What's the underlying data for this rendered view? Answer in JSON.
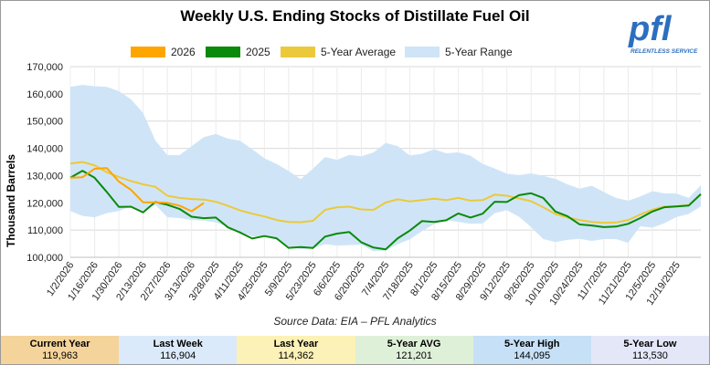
{
  "logo": {
    "text": "pfl",
    "tagline": "RELENTLESS SERVICE"
  },
  "chart_data": {
    "type": "line",
    "title": "Weekly U.S. Ending Stocks of Distillate Fuel Oil",
    "ylabel": "Thousand Barrels",
    "ylim": [
      100000,
      170000
    ],
    "yticks": [
      "100,000",
      "110,000",
      "120,000",
      "130,000",
      "140,000",
      "150,000",
      "160,000",
      "170,000"
    ],
    "xticks": [
      "1/2/2026",
      "1/16/2026",
      "1/30/2026",
      "2/13/2026",
      "2/27/2026",
      "3/13/2026",
      "3/28/2025",
      "4/11/2025",
      "4/25/2025",
      "5/9/2025",
      "5/23/2025",
      "6/6/2025",
      "6/20/2025",
      "7/4/2025",
      "7/18/2025",
      "8/1/2025",
      "8/15/2025",
      "8/29/2025",
      "9/12/2025",
      "9/26/2025",
      "10/10/2025",
      "10/24/2025",
      "11/7/2025",
      "11/21/2025",
      "12/5/2025",
      "12/19/2025"
    ],
    "weeks": 53,
    "legend": [
      {
        "name": "2026",
        "color": "#ffa500"
      },
      {
        "name": "2025",
        "color": "#0a8a0a"
      },
      {
        "name": "5-Year Average",
        "color": "#ecc93a"
      },
      {
        "name": "5-Year Range",
        "color": "#cfe5f7"
      }
    ],
    "series": [
      {
        "name": "2026",
        "color": "#ffa500",
        "values": [
          129200,
          129400,
          132500,
          132800,
          127800,
          124800,
          120200,
          120200,
          120000,
          119000,
          116904,
          119963
        ]
      },
      {
        "name": "2025",
        "color": "#0a8a0a",
        "values": [
          129200,
          131800,
          129200,
          124000,
          118500,
          118600,
          116500,
          120300,
          119300,
          117800,
          114900,
          114362,
          114600,
          111000,
          109100,
          106900,
          107800,
          107000,
          103500,
          103800,
          103400,
          107600,
          108700,
          109300,
          105500,
          103600,
          102900,
          107000,
          109800,
          113300,
          113000,
          113600,
          116100,
          114600,
          116000,
          120400,
          120300,
          122800,
          123500,
          121800,
          116800,
          115100,
          112100,
          111700,
          111100,
          111300,
          112300,
          114400,
          116800,
          118400,
          118700,
          119000,
          123200
        ]
      },
      {
        "name": "5-Year Average",
        "color": "#ecc93a",
        "values": [
          134400,
          135000,
          133800,
          131200,
          129500,
          128000,
          126800,
          125900,
          122600,
          121800,
          121400,
          121201,
          120400,
          118900,
          117200,
          116000,
          115000,
          113700,
          113000,
          112900,
          113400,
          117400,
          118400,
          118600,
          117600,
          117400,
          120100,
          121300,
          120500,
          121000,
          121500,
          121000,
          121800,
          120800,
          121000,
          123000,
          122600,
          121600,
          120600,
          118400,
          115900,
          114600,
          113700,
          113000,
          112700,
          112800,
          113700,
          115700,
          117500,
          118700,
          118800,
          119200,
          123000
        ]
      }
    ],
    "range": {
      "high": [
        162600,
        163300,
        162800,
        162600,
        161000,
        158000,
        153000,
        143000,
        137500,
        137500,
        140800,
        144095,
        145300,
        143600,
        142800,
        139700,
        136400,
        134300,
        131700,
        128700,
        132500,
        136800,
        135800,
        137600,
        137100,
        138500,
        142000,
        140800,
        137400,
        138000,
        139700,
        138200,
        138500,
        137300,
        134300,
        132600,
        130700,
        130200,
        130800,
        129900,
        128800,
        126800,
        125200,
        126300,
        124000,
        121800,
        120800,
        122300,
        124300,
        123500,
        123400,
        121800,
        126500
      ],
      "low": [
        117000,
        115200,
        114700,
        116200,
        117000,
        118700,
        117200,
        119300,
        114700,
        114400,
        113700,
        113530,
        112800,
        111200,
        109400,
        107700,
        107700,
        106500,
        104000,
        103000,
        103300,
        104800,
        104300,
        104500,
        104600,
        102200,
        102500,
        104800,
        106600,
        109600,
        112200,
        113600,
        113000,
        112300,
        112400,
        116200,
        117300,
        114900,
        111100,
        106700,
        105600,
        106400,
        106800,
        106000,
        106700,
        106700,
        105300,
        111400,
        110900,
        112500,
        114800,
        115900,
        118700
      ]
    }
  },
  "source": "Source Data: EIA – PFL Analytics",
  "stats": [
    {
      "label": "Current Year",
      "value": "119,963",
      "bg": "#f5d49b"
    },
    {
      "label": "Last Week",
      "value": "116,904",
      "bg": "#dbeafa"
    },
    {
      "label": "Last Year",
      "value": "114,362",
      "bg": "#fcf1b6"
    },
    {
      "label": "5-Year AVG",
      "value": "121,201",
      "bg": "#dff0d8"
    },
    {
      "label": "5-Year High",
      "value": "144,095",
      "bg": "#c6e0f7"
    },
    {
      "label": "5-Year Low",
      "value": "113,530",
      "bg": "#e3e7f7"
    }
  ]
}
